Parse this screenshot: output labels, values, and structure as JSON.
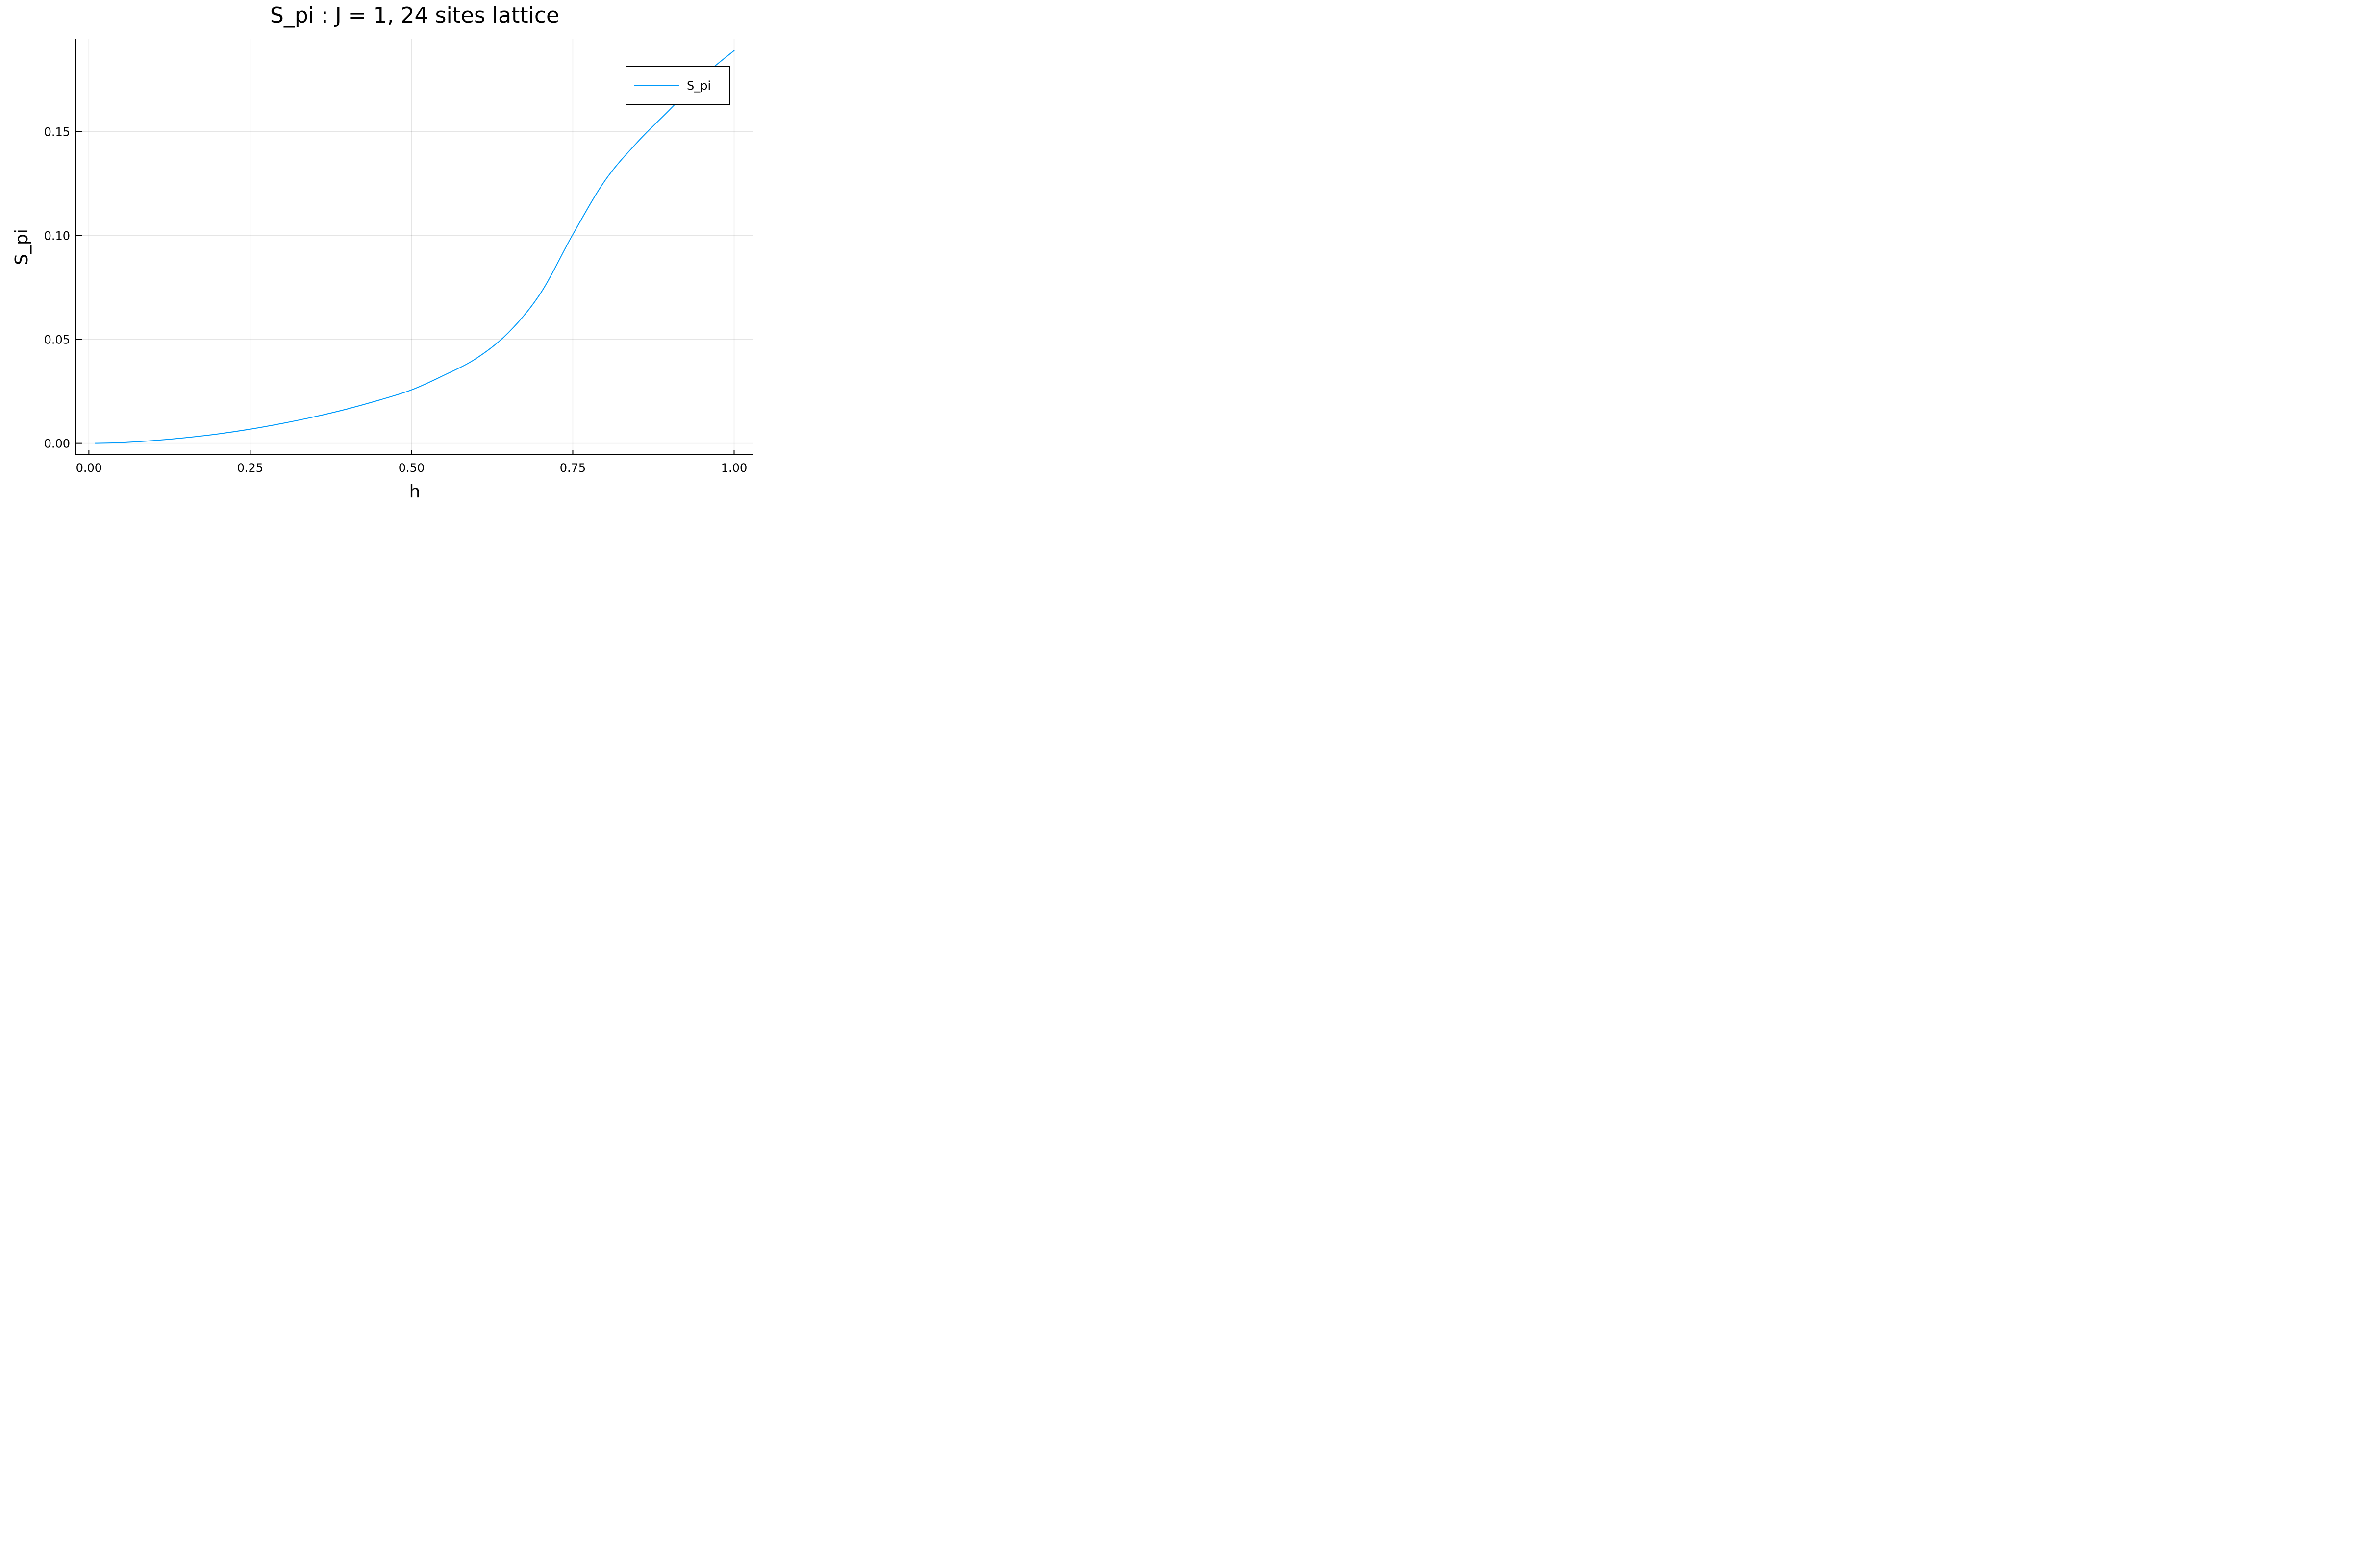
{
  "chart_data": {
    "type": "line",
    "title": "S_pi : J = 1, 24 sites lattice",
    "xlabel": "h",
    "ylabel": "S_pi",
    "xlim": [
      -0.02,
      1.03
    ],
    "ylim": [
      -0.0055,
      0.1945
    ],
    "xticks": [
      0.0,
      0.25,
      0.5,
      0.75,
      1.0
    ],
    "xtick_labels": [
      "0.00",
      "0.25",
      "0.50",
      "0.75",
      "1.00"
    ],
    "yticks": [
      0.0,
      0.05,
      0.1,
      0.15
    ],
    "ytick_labels": [
      "0.00",
      "0.05",
      "0.10",
      "0.15"
    ],
    "grid": true,
    "legend": {
      "position": "top-right"
    },
    "colors": {
      "series": "#009AFA",
      "grid": "#e6e6e6",
      "axis": "#000000"
    },
    "series": [
      {
        "name": "S_pi",
        "x": [
          0.01,
          0.05,
          0.1,
          0.15,
          0.2,
          0.25,
          0.3,
          0.35,
          0.4,
          0.45,
          0.5,
          0.55,
          0.6,
          0.65,
          0.7,
          0.75,
          0.8,
          0.85,
          0.9,
          0.95,
          1.0
        ],
        "y": [
          0.0,
          0.0003,
          0.0013,
          0.0027,
          0.0045,
          0.0068,
          0.0096,
          0.0128,
          0.0165,
          0.0208,
          0.0257,
          0.0327,
          0.0408,
          0.0532,
          0.0722,
          0.1005,
          0.1265,
          0.1449,
          0.1605,
          0.1762,
          0.189
        ]
      }
    ]
  }
}
